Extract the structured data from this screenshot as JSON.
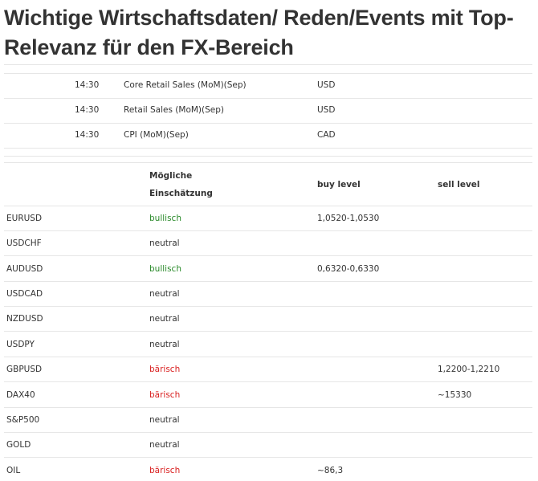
{
  "title": "Wichtige Wirtschaftsdaten/ Reden/Events mit Top-Relevanz für den FX-Bereich",
  "events": [
    {
      "time": "14:30",
      "event": "Core Retail Sales (MoM)(Sep)",
      "currency": "USD"
    },
    {
      "time": "14:30",
      "event": "Retail Sales (MoM)(Sep)",
      "currency": "USD"
    },
    {
      "time": "14:30",
      "event": "CPI (MoM)(Sep)",
      "currency": "CAD"
    }
  ],
  "assessment_table": {
    "headers": {
      "assessment_line1": "Mögliche",
      "assessment_line2": "Einschätzung",
      "buy": "buy level",
      "sell": "sell level"
    },
    "rows": [
      {
        "instrument": "EURUSD",
        "assessment": "bullisch",
        "sentiment": "bull",
        "buy": "1,0520-1,0530",
        "sell": ""
      },
      {
        "instrument": "USDCHF",
        "assessment": "neutral",
        "sentiment": "neutral",
        "buy": "",
        "sell": ""
      },
      {
        "instrument": "AUDUSD",
        "assessment": "bullisch",
        "sentiment": "bull",
        "buy": "0,6320-0,6330",
        "sell": ""
      },
      {
        "instrument": "USDCAD",
        "assessment": "neutral",
        "sentiment": "neutral",
        "buy": "",
        "sell": ""
      },
      {
        "instrument": "NZDUSD",
        "assessment": "neutral",
        "sentiment": "neutral",
        "buy": "",
        "sell": ""
      },
      {
        "instrument": "USDPY",
        "assessment": "neutral",
        "sentiment": "neutral",
        "buy": "",
        "sell": ""
      },
      {
        "instrument": "GBPUSD",
        "assessment": "bärisch",
        "sentiment": "bear",
        "buy": "",
        "sell": "1,2200-1,2210"
      },
      {
        "instrument": "DAX40",
        "assessment": "bärisch",
        "sentiment": "bear",
        "buy": "",
        "sell": "~15330"
      },
      {
        "instrument": "S&P500",
        "assessment": "neutral",
        "sentiment": "neutral",
        "buy": "",
        "sell": ""
      },
      {
        "instrument": "GOLD",
        "assessment": "neutral",
        "sentiment": "neutral",
        "buy": "",
        "sell": ""
      },
      {
        "instrument": "OIL",
        "assessment": "bärisch",
        "sentiment": "bear",
        "buy": "~86,3",
        "sell": ""
      }
    ]
  },
  "colors": {
    "bullish": "#2a8a2a",
    "bearish": "#d91f1f",
    "text": "#333333",
    "rule": "#e6e6e6"
  }
}
